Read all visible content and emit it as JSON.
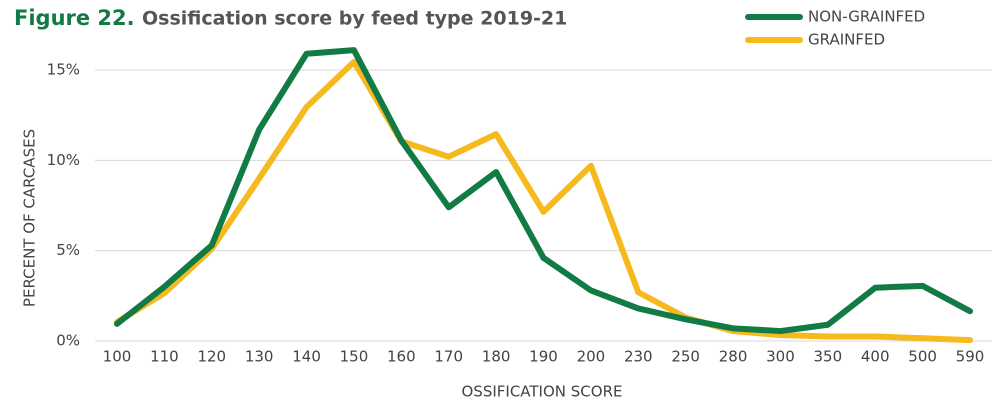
{
  "chart_data": {
    "type": "line",
    "figure_label": "Figure 22.",
    "title": "Ossification score by feed type 2019-21",
    "x_label": "OSSIFICATION SCORE",
    "y_label": "PERCENT OF CARCASES",
    "categories": [
      "100",
      "110",
      "120",
      "130",
      "140",
      "150",
      "160",
      "170",
      "180",
      "190",
      "200",
      "230",
      "250",
      "280",
      "300",
      "350",
      "400",
      "500",
      "590"
    ],
    "series": [
      {
        "name": "NON-GRAINFED",
        "color": "#127a45",
        "values": [
          0.95,
          3.0,
          5.3,
          11.7,
          15.9,
          16.1,
          11.1,
          7.4,
          9.35,
          4.6,
          2.8,
          1.8,
          1.2,
          0.7,
          0.55,
          0.9,
          2.95,
          3.05,
          1.65
        ]
      },
      {
        "name": "GRAINFED",
        "color": "#f6b91e",
        "values": [
          1.05,
          2.65,
          5.1,
          9.0,
          12.95,
          15.45,
          11.05,
          10.2,
          11.45,
          7.15,
          9.7,
          2.7,
          1.3,
          0.55,
          0.33,
          0.25,
          0.25,
          0.15,
          0.05
        ]
      }
    ],
    "ylim": [
      0,
      15
    ],
    "yticks": [
      {
        "value": 0,
        "label": "0%"
      },
      {
        "value": 5,
        "label": "5%"
      },
      {
        "value": 10,
        "label": "10%"
      },
      {
        "value": 15,
        "label": "15%"
      }
    ],
    "grid": true,
    "legend": "top-right"
  }
}
